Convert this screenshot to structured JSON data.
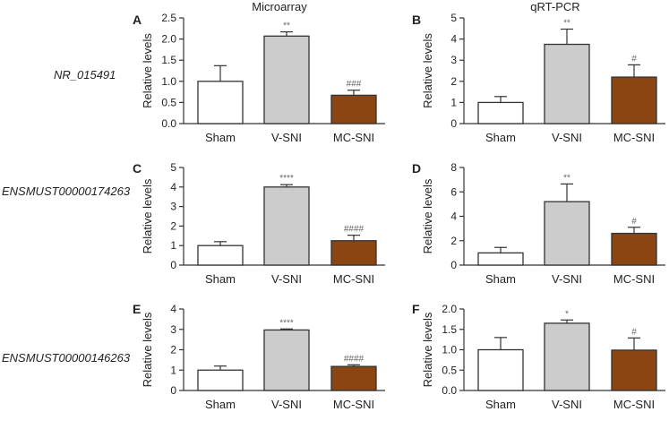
{
  "column_headers": [
    "Microarray",
    "qRT-PCR"
  ],
  "row_labels": [
    "NR_015491",
    "ENSMUST00000174263",
    "ENSMUST00000146263"
  ],
  "colors": {
    "sham": "#ffffff",
    "vsni": "#cccccc",
    "mcsni": "#8b4513",
    "axis": "#333333",
    "sig": "#666666"
  },
  "chart_data": [
    {
      "panel": "A",
      "type": "bar",
      "title": "",
      "ylabel": "Relative levels",
      "categories": [
        "Sham",
        "V-SNI",
        "MC-SNI"
      ],
      "values": [
        1.0,
        2.07,
        0.67
      ],
      "errors": [
        0.37,
        0.1,
        0.12
      ],
      "significance": [
        "",
        "**",
        "###"
      ],
      "ylim": [
        0,
        2.5
      ],
      "ticks": [
        0.0,
        0.5,
        1.0,
        1.5,
        2.0,
        2.5
      ],
      "tick_labels": [
        "0.0",
        "0.5",
        "1.0",
        "1.5",
        "2.0",
        "2.5"
      ]
    },
    {
      "panel": "B",
      "type": "bar",
      "title": "",
      "ylabel": "Relative levels",
      "categories": [
        "Sham",
        "V-SNI",
        "MC-SNI"
      ],
      "values": [
        1.0,
        3.75,
        2.2
      ],
      "errors": [
        0.28,
        0.72,
        0.58
      ],
      "significance": [
        "",
        "**",
        "#"
      ],
      "ylim": [
        0,
        5
      ],
      "ticks": [
        0,
        1,
        2,
        3,
        4,
        5
      ],
      "tick_labels": [
        "0",
        "1",
        "2",
        "3",
        "4",
        "5"
      ]
    },
    {
      "panel": "C",
      "type": "bar",
      "title": "",
      "ylabel": "Relative levels",
      "categories": [
        "Sham",
        "V-SNI",
        "MC-SNI"
      ],
      "values": [
        1.0,
        4.0,
        1.25
      ],
      "errors": [
        0.2,
        0.12,
        0.28
      ],
      "significance": [
        "",
        "****",
        "####"
      ],
      "ylim": [
        0,
        5
      ],
      "ticks": [
        0,
        1,
        2,
        3,
        4,
        5
      ],
      "tick_labels": [
        "0",
        "1",
        "2",
        "3",
        "4",
        "5"
      ]
    },
    {
      "panel": "D",
      "type": "bar",
      "title": "",
      "ylabel": "Relative levels",
      "categories": [
        "Sham",
        "V-SNI",
        "MC-SNI"
      ],
      "values": [
        1.0,
        5.2,
        2.6
      ],
      "errors": [
        0.45,
        1.45,
        0.5
      ],
      "significance": [
        "",
        "**",
        "#"
      ],
      "ylim": [
        0,
        8
      ],
      "ticks": [
        0,
        2,
        4,
        6,
        8
      ],
      "tick_labels": [
        "0",
        "2",
        "4",
        "6",
        "8"
      ]
    },
    {
      "panel": "E",
      "type": "bar",
      "title": "",
      "ylabel": "Relative levels",
      "categories": [
        "Sham",
        "V-SNI",
        "MC-SNI"
      ],
      "values": [
        1.0,
        2.97,
        1.18
      ],
      "errors": [
        0.2,
        0.05,
        0.08
      ],
      "significance": [
        "",
        "****",
        "####"
      ],
      "ylim": [
        0,
        4
      ],
      "ticks": [
        0,
        1,
        2,
        3,
        4
      ],
      "tick_labels": [
        "0",
        "1",
        "2",
        "3",
        "4"
      ]
    },
    {
      "panel": "F",
      "type": "bar",
      "title": "",
      "ylabel": "Relative levels",
      "categories": [
        "Sham",
        "V-SNI",
        "MC-SNI"
      ],
      "values": [
        1.0,
        1.65,
        0.99
      ],
      "errors": [
        0.3,
        0.08,
        0.3
      ],
      "significance": [
        "",
        "*",
        "#"
      ],
      "ylim": [
        0,
        2.0
      ],
      "ticks": [
        0.0,
        0.5,
        1.0,
        1.5,
        2.0
      ],
      "tick_labels": [
        "0.0",
        "0.5",
        "1.0",
        "1.5",
        "2.0"
      ]
    }
  ]
}
